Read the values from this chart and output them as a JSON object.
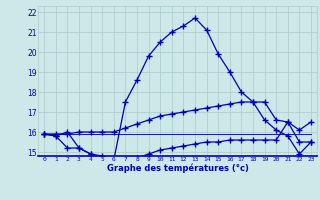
{
  "xlabel": "Graphe des températures (°c)",
  "hours": [
    0,
    1,
    2,
    3,
    4,
    5,
    6,
    7,
    8,
    9,
    10,
    11,
    12,
    13,
    14,
    15,
    16,
    17,
    18,
    19,
    20,
    21,
    22,
    23
  ],
  "temp_main": [
    15.9,
    15.8,
    16.0,
    15.2,
    14.9,
    14.7,
    14.6,
    17.5,
    18.6,
    19.8,
    20.5,
    21.0,
    21.3,
    21.7,
    21.1,
    19.9,
    19.0,
    18.0,
    17.5,
    16.6,
    16.1,
    15.8,
    14.9,
    15.5
  ],
  "temp_max": [
    15.9,
    15.9,
    15.9,
    16.0,
    16.0,
    16.0,
    16.0,
    16.2,
    16.4,
    16.6,
    16.8,
    16.9,
    17.0,
    17.1,
    17.2,
    17.3,
    17.4,
    17.5,
    17.5,
    17.5,
    16.6,
    16.5,
    16.1,
    16.5
  ],
  "temp_min": [
    15.9,
    15.8,
    15.2,
    15.2,
    14.9,
    14.8,
    14.6,
    14.6,
    14.7,
    14.9,
    15.1,
    15.2,
    15.3,
    15.4,
    15.5,
    15.5,
    15.6,
    15.6,
    15.6,
    15.6,
    15.6,
    16.5,
    15.5,
    15.5
  ],
  "temp_flat": [
    15.9,
    15.9,
    15.9,
    15.9,
    15.9,
    15.9,
    15.9,
    15.9,
    15.9,
    15.9,
    15.9,
    15.9,
    15.9,
    15.9,
    15.9,
    15.9,
    15.9,
    15.9,
    15.9,
    15.9,
    15.9,
    15.9,
    15.9,
    15.9
  ],
  "ylim_min": 14.8,
  "ylim_max": 22.3,
  "yticks": [
    15,
    16,
    17,
    18,
    19,
    20,
    21,
    22
  ],
  "bg_color": "#cce8e8",
  "grid_color": "#aacccc",
  "line_color": "#0000bb",
  "marker": "+",
  "markersize": 4,
  "linewidth": 0.9
}
